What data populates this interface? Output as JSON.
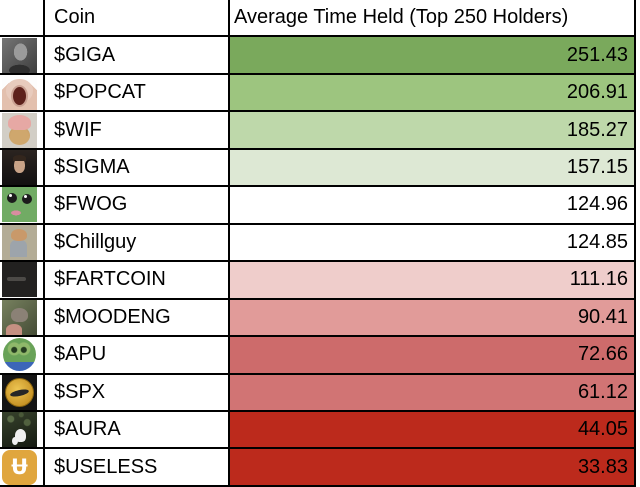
{
  "table": {
    "headers": {
      "icon_column": "",
      "coin": "Coin",
      "value": "Average Time Held (Top 250 Holders)"
    },
    "rows": [
      {
        "coin": "$GIGA",
        "value": "251.43",
        "color": "#7aa95c",
        "icon": "giga-icon"
      },
      {
        "coin": "$POPCAT",
        "value": "206.91",
        "color": "#9dc57f",
        "icon": "popcat-icon"
      },
      {
        "coin": "$WIF",
        "value": "185.27",
        "color": "#bed8aa",
        "icon": "wif-icon"
      },
      {
        "coin": "$SIGMA",
        "value": "157.15",
        "color": "#dde8d4",
        "icon": "sigma-icon"
      },
      {
        "coin": "$FWOG",
        "value": "124.96",
        "color": "#ffffff",
        "icon": "fwog-icon"
      },
      {
        "coin": "$Chillguy",
        "value": "124.85",
        "color": "#ffffff",
        "icon": "chillguy-icon"
      },
      {
        "coin": "$FARTCOIN",
        "value": "111.16",
        "color": "#efcdcb",
        "icon": "fartcoin-icon"
      },
      {
        "coin": "$MOODENG",
        "value": "90.41",
        "color": "#e19b99",
        "icon": "moodeng-icon"
      },
      {
        "coin": "$APU",
        "value": "72.66",
        "color": "#cd6b6b",
        "icon": "apu-icon"
      },
      {
        "coin": "$SPX",
        "value": "61.12",
        "color": "#d17474",
        "icon": "spx-icon"
      },
      {
        "coin": "$AURA",
        "value": "44.05",
        "color": "#bc2a1c",
        "icon": "aura-icon"
      },
      {
        "coin": "$USELESS",
        "value": "33.83",
        "color": "#bc2a1c",
        "icon": "useless-icon"
      }
    ],
    "border_color": "#000000",
    "text_color": "#000000",
    "background": "#ffffff"
  },
  "chart_data": {
    "type": "table",
    "title": "",
    "columns": [
      "Coin",
      "Average Time Held (Top 250 Holders)"
    ],
    "rows": [
      [
        "$GIGA",
        251.43
      ],
      [
        "$POPCAT",
        206.91
      ],
      [
        "$WIF",
        185.27
      ],
      [
        "$SIGMA",
        157.15
      ],
      [
        "$FWOG",
        124.96
      ],
      [
        "$Chillguy",
        124.85
      ],
      [
        "$FARTCOIN",
        111.16
      ],
      [
        "$MOODENG",
        90.41
      ],
      [
        "$APU",
        72.66
      ],
      [
        "$SPX",
        61.12
      ],
      [
        "$AURA",
        44.05
      ],
      [
        "$USELESS",
        33.83
      ]
    ],
    "value_range": [
      33.83,
      251.43
    ],
    "layout_hints": {
      "sorted": "descending by value",
      "conditional_formatting": "green-white-red color scale (high values green, low values red)",
      "grid": "black cell borders"
    }
  }
}
